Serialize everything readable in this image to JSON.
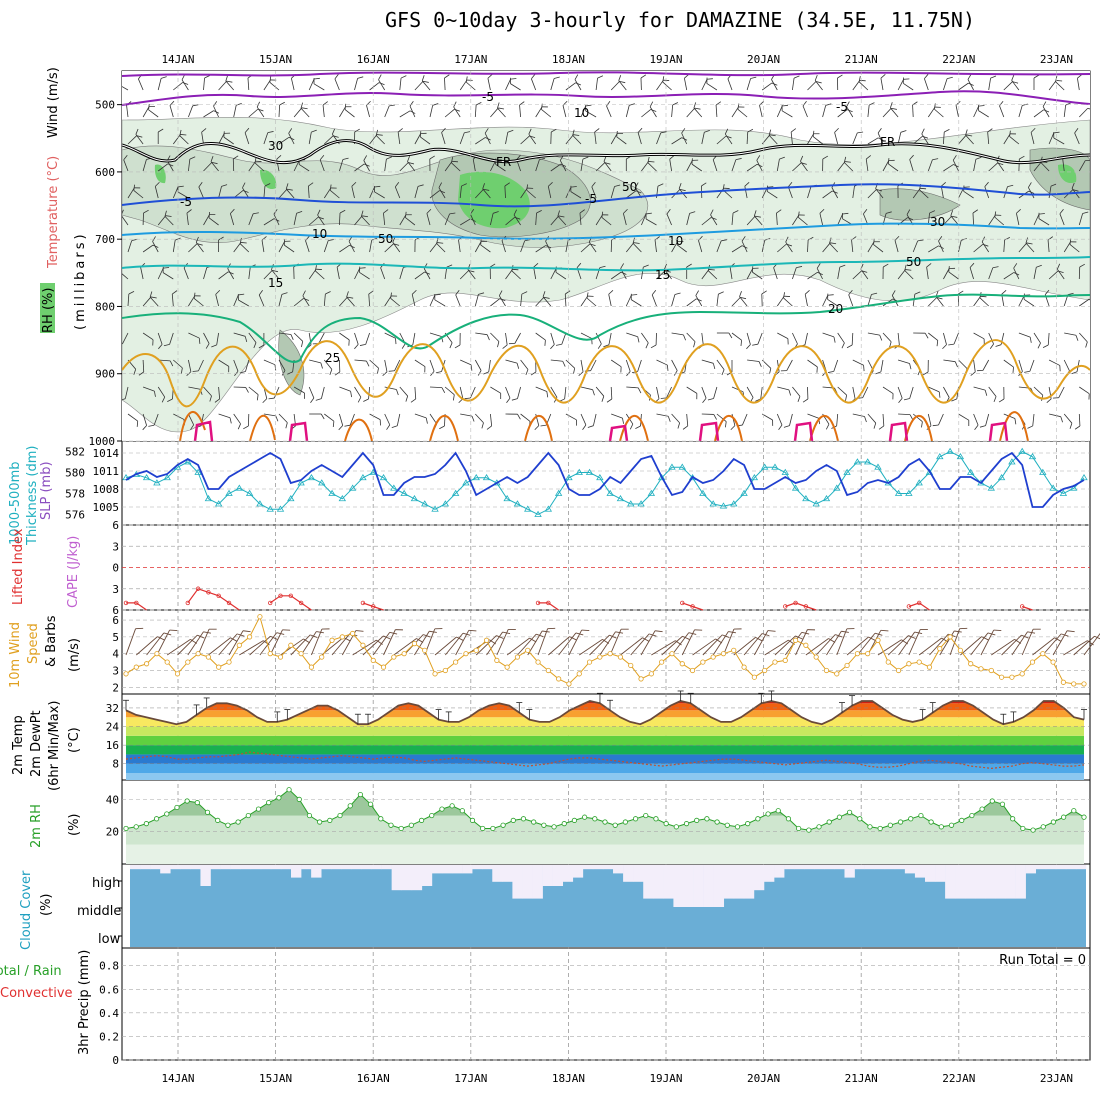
{
  "title": "GFS 0~10day 3-hourly for DAMAZINE (34.5E, 11.75N)",
  "dates": [
    "14JAN",
    "15JAN",
    "16JAN",
    "17JAN",
    "18JAN",
    "19JAN",
    "20JAN",
    "21JAN",
    "22JAN",
    "23JAN"
  ],
  "colors": {
    "purple": "#8b1fb5",
    "black": "#000000",
    "blue": "#1f4fd6",
    "skyblue": "#1e9be0",
    "teal": "#1bb7b7",
    "green": "#18b07a",
    "orange": "#e0a020",
    "darkorange": "#e07010",
    "magenta": "#e01080",
    "rhFill": "#cfe6cf",
    "rhDark": "#a8bfa8",
    "rhGreen": "#6fcf6f",
    "grid": "#9a9a9a",
    "cloud": "#6aaed6",
    "cloudClear": "#f3eefa"
  },
  "chart_data": [
    {
      "type": "contour",
      "panel": "upper-air",
      "ylabel_parts": [
        "Wind (m/s)",
        "Temperature (°C)",
        "RH (%)"
      ],
      "yunit": "(millibars)",
      "yticks": [
        500,
        600,
        700,
        800,
        900,
        1000
      ],
      "ylim": [
        1000,
        450
      ],
      "contour_labels": [
        "-5",
        "-5",
        "FR",
        "FR",
        "-5",
        "-5",
        "10",
        "10",
        "15",
        "15",
        "20",
        "25",
        "10",
        "50",
        "30",
        "50",
        "30",
        "50"
      ]
    },
    {
      "type": "line",
      "panel": "sea-level-pressure-and-thickness",
      "ylabel_left": [
        "1000-500mb",
        "Thickness (dm)"
      ],
      "ylabel_right": "SLP (mb)",
      "yticks_left": [
        576,
        578,
        580,
        582
      ],
      "yticks_right": [
        1005,
        1008,
        1011,
        1014
      ],
      "series": [
        {
          "name": "SLP",
          "color": "#1f3fcf",
          "values": [
            1009.5,
            1010.5,
            1011,
            1010,
            1010.5,
            1012,
            1013,
            1012,
            1008,
            1008,
            1010,
            1011,
            1012,
            1013,
            1014,
            1013,
            1009,
            1009.5,
            1011,
            1012,
            1011,
            1010,
            1012,
            1014,
            1012,
            1007,
            1007,
            1009,
            1010,
            1010,
            1010.5,
            1012,
            1014,
            1011,
            1007,
            1008,
            1009,
            1010,
            1009,
            1010,
            1012,
            1014,
            1012,
            1008,
            1007,
            1007,
            1008,
            1010,
            1009,
            1011,
            1013,
            1013.5,
            1010,
            1007,
            1007.5,
            1010,
            1009,
            1009.5,
            1011,
            1013,
            1012,
            1008,
            1008,
            1009,
            1010,
            1009,
            1009.5,
            1011,
            1012,
            1011,
            1007,
            1007.5,
            1009,
            1009.5,
            1009,
            1010,
            1012,
            1013,
            1011,
            1008,
            1008,
            1010,
            1010,
            1009,
            1011,
            1013,
            1014,
            1012,
            1005,
            1005,
            1007,
            1008,
            1008.5,
            1009.5
          ]
        },
        {
          "name": "Thickness",
          "color": "#20b0c0",
          "values": [
            579.5,
            579.8,
            579.5,
            579,
            579.5,
            580.5,
            581,
            580,
            577.5,
            577,
            578,
            578.5,
            578,
            577,
            576.5,
            576.5,
            577.5,
            579,
            579.5,
            579,
            578,
            577.5,
            578.5,
            579.5,
            580,
            579.5,
            578.5,
            578,
            577.5,
            577,
            576.5,
            577,
            578,
            579,
            579.5,
            579.5,
            579,
            577.5,
            577,
            576.5,
            576,
            576.5,
            578,
            579.5,
            580,
            580,
            579.5,
            578,
            577.5,
            577,
            577,
            578,
            579.5,
            580.5,
            580.5,
            579.5,
            578,
            577,
            576.8,
            577,
            578,
            579.5,
            580.5,
            580.5,
            580,
            578.5,
            577.5,
            577,
            577.5,
            578.5,
            580,
            581,
            581,
            580.5,
            579,
            578,
            578,
            579,
            580,
            581.5,
            582,
            581.5,
            580,
            579,
            578.5,
            579.5,
            581,
            582,
            581.5,
            580,
            578.5,
            578,
            578.5,
            579.5
          ]
        }
      ]
    },
    {
      "type": "line",
      "panel": "stability",
      "ylabel_left": "Lifted Index",
      "ylabel_right": "CAPE (J/kg)",
      "yticks": [
        -6,
        -3,
        0,
        3,
        6
      ],
      "yticklabels": [
        "6",
        "3",
        "0",
        "3",
        "6"
      ],
      "series": [
        {
          "name": "Lifted Index",
          "color": "#e03030",
          "values": [
            5,
            5,
            6,
            6,
            6,
            6,
            5,
            3,
            3.5,
            4,
            5,
            6,
            6,
            6,
            5,
            4,
            4,
            5,
            6,
            6,
            6,
            6,
            6,
            5,
            5.5,
            6,
            6,
            6,
            6,
            6,
            6,
            6,
            6,
            6,
            6,
            6,
            6,
            6,
            6,
            6,
            5,
            5,
            6,
            6,
            6,
            6,
            6,
            6,
            6,
            6,
            6,
            6,
            6,
            6,
            5,
            5.5,
            6,
            6,
            6,
            6,
            6,
            6,
            6,
            6,
            5.5,
            5,
            5.5,
            6,
            6,
            6,
            6,
            6,
            6,
            6,
            6,
            6,
            5.5,
            5,
            6,
            6,
            6,
            6,
            6,
            6,
            6,
            6,
            6,
            5.5,
            6,
            6,
            6,
            6,
            6,
            6
          ]
        }
      ]
    },
    {
      "type": "line",
      "panel": "10m-wind",
      "ylabel_left": [
        "10m Wind",
        "Speed",
        "& Barbs"
      ],
      "yunit": "(m/s)",
      "yticks": [
        2,
        3,
        4,
        5,
        6
      ],
      "series": [
        {
          "name": "Wind Speed",
          "color": "#e0a020",
          "values": [
            2.8,
            3.2,
            3.4,
            4,
            3.5,
            2.8,
            3.5,
            4,
            3.8,
            3.2,
            3.5,
            4.5,
            5,
            6.2,
            4,
            3.8,
            4.5,
            4,
            3.2,
            3.8,
            4.8,
            5,
            5.2,
            4.5,
            3.6,
            3.2,
            3.8,
            4,
            4.6,
            4.2,
            2.8,
            3,
            3.5,
            4,
            4.2,
            4.8,
            3.6,
            3.2,
            3.8,
            4.2,
            3.5,
            3,
            2.5,
            2.2,
            2.8,
            3.5,
            3.8,
            4,
            3.8,
            3.3,
            2.5,
            2.8,
            3.5,
            4,
            3.4,
            3,
            3.5,
            3.8,
            4,
            4.2,
            3.2,
            2.6,
            3,
            3.5,
            3.6,
            4.8,
            4.5,
            3.8,
            3,
            2.8,
            3.3,
            4,
            4,
            4.8,
            3.5,
            3,
            3.4,
            3.5,
            3.2,
            4.3,
            5,
            4.2,
            3.4,
            3.1,
            3,
            2.6,
            2.6,
            2.8,
            3.5,
            4,
            3.5,
            2.3,
            2.2,
            2.2
          ]
        }
      ]
    },
    {
      "type": "area",
      "panel": "2m-temperature",
      "ylabel_left": [
        "2m Temp",
        "2m DewPt",
        "(6hr Min/Max)"
      ],
      "yunit": "(°C)",
      "yticks": [
        8,
        16,
        24,
        32
      ],
      "series": [
        {
          "name": "2m Temp",
          "color": "#6a4a3a",
          "values": [
            31,
            29,
            28,
            27,
            26,
            25,
            26,
            29,
            32,
            34,
            34,
            33,
            31,
            28,
            26,
            26,
            27,
            29,
            31,
            33,
            33,
            31,
            28,
            25,
            25,
            27,
            30,
            33,
            34,
            33,
            30,
            27,
            26,
            26,
            28,
            31,
            33,
            34,
            33,
            30,
            27,
            26,
            26,
            28,
            31,
            33,
            35,
            34,
            31,
            28,
            26,
            25,
            27,
            30,
            33,
            35,
            34,
            31,
            28,
            26,
            26,
            28,
            31,
            34,
            35,
            34,
            31,
            28,
            26,
            25,
            27,
            30,
            33,
            35,
            35,
            32,
            29,
            27,
            26,
            27,
            30,
            33,
            35,
            35,
            33,
            30,
            27,
            25,
            26,
            28,
            31,
            35,
            35,
            32,
            28,
            27
          ]
        },
        {
          "name": "2m DewPt",
          "color": "#c05030",
          "values": [
            10,
            10.5,
            11,
            11.5,
            11,
            10,
            10,
            10.5,
            11,
            11,
            11.5,
            12,
            13,
            12.5,
            12,
            11.5,
            11,
            10.5,
            10,
            10.5,
            11,
            11.5,
            11,
            10.5,
            10,
            10.5,
            11,
            10.5,
            9.5,
            9,
            9.5,
            10,
            10.5,
            10,
            9.5,
            9,
            8.5,
            8,
            7.5,
            7,
            7.5,
            8,
            9,
            10,
            10.5,
            10.5,
            10,
            9.5,
            9,
            8.5,
            8,
            7.5,
            7,
            7.5,
            8,
            8.5,
            9,
            9.5,
            10,
            10,
            9.5,
            9,
            8.5,
            8,
            7.5,
            8,
            8.5,
            9,
            9.5,
            9,
            8.5,
            8,
            7,
            6.5,
            6.5,
            7,
            8,
            9,
            9.5,
            9,
            8.5,
            8,
            7,
            6.5,
            6,
            6.5,
            7,
            8,
            8.5,
            8,
            7.5,
            7,
            7,
            7.5
          ]
        }
      ]
    },
    {
      "type": "area",
      "panel": "2m-rh",
      "ylabel_left": "2m RH",
      "yunit": "(%)",
      "yticks": [
        20,
        40
      ],
      "series": [
        {
          "name": "2m RH",
          "color": "#28a028",
          "values": [
            22,
            23,
            25,
            28,
            31,
            35,
            39,
            38,
            32,
            27,
            24,
            26,
            30,
            34,
            38,
            41,
            46,
            40,
            30,
            26,
            27,
            30,
            36,
            43,
            37,
            28,
            24,
            22,
            24,
            27,
            30,
            34,
            36,
            33,
            27,
            22,
            22,
            24,
            27,
            28,
            26,
            24,
            23,
            25,
            27,
            29,
            28,
            26,
            24,
            26,
            28,
            30,
            28,
            25,
            23,
            25,
            27,
            28,
            26,
            24,
            23,
            25,
            28,
            31,
            33,
            28,
            22,
            21,
            23,
            26,
            29,
            32,
            28,
            23,
            22,
            24,
            26,
            28,
            30,
            26,
            23,
            24,
            27,
            30,
            34,
            39,
            37,
            28,
            22,
            21,
            23,
            26,
            29,
            33,
            29
          ]
        }
      ]
    },
    {
      "type": "bar",
      "panel": "cloud-cover",
      "ylabel_left": "Cloud Cover",
      "yunit": "(%)",
      "levels": [
        "high",
        "middle",
        "low"
      ],
      "series": [
        {
          "name": "high cloud cover",
          "values": [
            0.95,
            0.95,
            0.95,
            0.9,
            0.95,
            0.95,
            0.95,
            0.75,
            0.95,
            0.95,
            0.95,
            0.95,
            0.95,
            0.95,
            0.95,
            0.95,
            0.85,
            0.95,
            0.85,
            0.95,
            0.95,
            0.95,
            0.95,
            0.95,
            0.95,
            0.95,
            0.7,
            0.7,
            0.7,
            0.75,
            0.9,
            0.9,
            0.9,
            0.9,
            0.95,
            0.95,
            0.8,
            0.8,
            0.6,
            0.6,
            0.6,
            0.75,
            0.75,
            0.8,
            0.85,
            0.95,
            0.95,
            0.95,
            0.9,
            0.8,
            0.8,
            0.6,
            0.6,
            0.6,
            0.5,
            0.5,
            0.5,
            0.5,
            0.5,
            0.6,
            0.6,
            0.6,
            0.7,
            0.8,
            0.85,
            0.95,
            0.95,
            0.95,
            0.95,
            0.95,
            0.95,
            0.85,
            0.95,
            0.95,
            0.95,
            0.95,
            0.95,
            0.9,
            0.85,
            0.8,
            0.8,
            0.6,
            0.6,
            0.6,
            0.6,
            0.6,
            0.6,
            0.6,
            0.6,
            0.9,
            0.95,
            0.95,
            0.95,
            0.95,
            0.95
          ]
        }
      ]
    },
    {
      "type": "bar",
      "panel": "precipitation",
      "ylabel_left": [
        "Total / Rain",
        "Convective"
      ],
      "yunit": "3hr Precip (mm)",
      "yticks": [
        0,
        0.2,
        0.4,
        0.6,
        0.8
      ],
      "annotation": "Run Total = 0",
      "series": [
        {
          "name": "Total",
          "values": [
            0,
            0,
            0,
            0,
            0,
            0,
            0,
            0,
            0,
            0
          ]
        }
      ]
    }
  ]
}
